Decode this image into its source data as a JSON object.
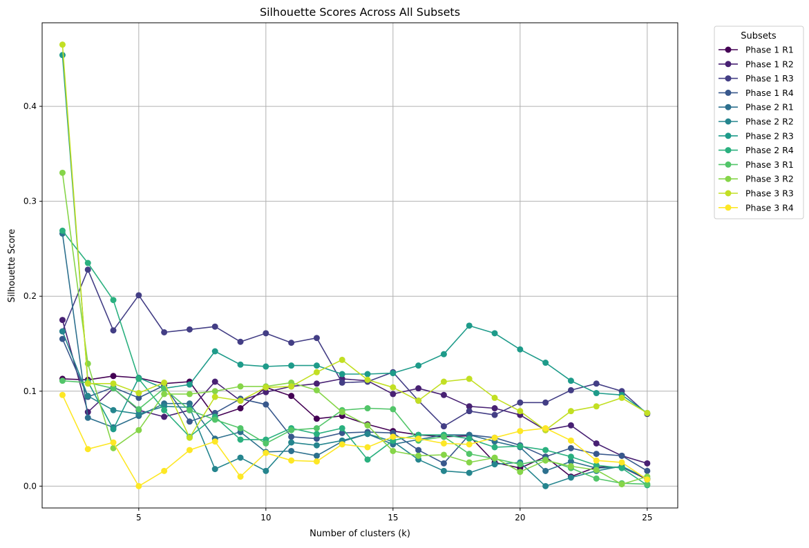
{
  "chart_data": {
    "type": "line",
    "title": "Silhouette Scores Across All Subsets",
    "xlabel": "Number of clusters (k)",
    "ylabel": "Silhouette Score",
    "xlim": [
      1.2,
      26.2
    ],
    "ylim": [
      -0.023,
      0.488
    ],
    "xticks": [
      5,
      10,
      15,
      20,
      25
    ],
    "yticks": [
      0.0,
      0.1,
      0.2,
      0.3,
      0.4
    ],
    "xtick_labels": [
      "5",
      "10",
      "15",
      "20",
      "25"
    ],
    "ytick_labels": [
      "0.0",
      "0.1",
      "0.2",
      "0.3",
      "0.4"
    ],
    "grid": true,
    "legend": {
      "title": "Subsets",
      "placement": "outside-right-top"
    },
    "x": [
      2,
      3,
      4,
      5,
      6,
      7,
      8,
      9,
      10,
      11,
      12,
      13,
      14,
      15,
      16,
      17,
      18,
      19,
      20,
      21,
      22,
      23,
      24,
      25
    ],
    "series": [
      {
        "name": "Phase 1 R1",
        "color": "#440154",
        "values": [
          0.113,
          0.112,
          0.116,
          0.114,
          0.108,
          0.11,
          0.073,
          0.082,
          0.104,
          0.095,
          0.071,
          0.074,
          0.065,
          0.058,
          0.054,
          0.052,
          0.053,
          0.025,
          0.019,
          0.031,
          0.01,
          0.02,
          0.02,
          0.007
        ]
      },
      {
        "name": "Phase 1 R2",
        "color": "#482173",
        "values": [
          0.175,
          0.078,
          0.103,
          0.08,
          0.073,
          0.08,
          0.11,
          0.09,
          0.099,
          0.105,
          0.108,
          0.113,
          0.111,
          0.097,
          0.103,
          0.096,
          0.084,
          0.082,
          0.075,
          0.059,
          0.064,
          0.045,
          0.032,
          0.024
        ]
      },
      {
        "name": "Phase 1 R3",
        "color": "#433e85",
        "values": [
          0.163,
          0.228,
          0.164,
          0.201,
          0.162,
          0.165,
          0.168,
          0.152,
          0.161,
          0.151,
          0.156,
          0.109,
          0.11,
          0.12,
          0.09,
          0.063,
          0.079,
          0.075,
          0.088,
          0.088,
          0.101,
          0.108,
          0.1,
          0.076
        ]
      },
      {
        "name": "Phase 1 R4",
        "color": "#38588c",
        "values": [
          0.155,
          0.094,
          0.104,
          0.093,
          0.106,
          0.068,
          0.077,
          0.092,
          0.086,
          0.052,
          0.05,
          0.056,
          0.057,
          0.056,
          0.038,
          0.024,
          0.054,
          0.051,
          0.043,
          0.031,
          0.04,
          0.034,
          0.032,
          0.016
        ]
      },
      {
        "name": "Phase 2 R1",
        "color": "#2d708e",
        "values": [
          0.266,
          0.072,
          0.062,
          0.074,
          0.087,
          0.087,
          0.05,
          0.057,
          0.036,
          0.037,
          0.032,
          0.047,
          0.055,
          0.044,
          0.049,
          0.054,
          0.054,
          0.047,
          0.041,
          0.016,
          0.026,
          0.019,
          0.02,
          0.008
        ]
      },
      {
        "name": "Phase 2 R2",
        "color": "#25858e",
        "values": [
          0.163,
          0.095,
          0.08,
          0.076,
          0.084,
          0.083,
          0.018,
          0.03,
          0.016,
          0.046,
          0.043,
          0.048,
          0.055,
          0.047,
          0.028,
          0.016,
          0.014,
          0.023,
          0.025,
          0.0,
          0.009,
          0.016,
          0.021,
          0.008
        ]
      },
      {
        "name": "Phase 2 R3",
        "color": "#1e9b8a",
        "values": [
          0.454,
          0.11,
          0.06,
          0.114,
          0.103,
          0.107,
          0.142,
          0.128,
          0.126,
          0.127,
          0.127,
          0.118,
          0.118,
          0.119,
          0.127,
          0.139,
          0.169,
          0.161,
          0.144,
          0.13,
          0.111,
          0.098,
          0.096,
          0.077
        ]
      },
      {
        "name": "Phase 2 R4",
        "color": "#2ab07f",
        "values": [
          0.269,
          0.235,
          0.196,
          0.113,
          0.08,
          0.052,
          0.073,
          0.049,
          0.049,
          0.061,
          0.055,
          0.061,
          0.028,
          0.048,
          0.054,
          0.054,
          0.05,
          0.041,
          0.042,
          0.038,
          0.031,
          0.022,
          0.019,
          0.001
        ]
      },
      {
        "name": "Phase 3 R1",
        "color": "#52c569",
        "values": [
          0.111,
          0.109,
          0.103,
          0.081,
          0.103,
          0.08,
          0.07,
          0.061,
          0.045,
          0.059,
          0.061,
          0.08,
          0.082,
          0.081,
          0.048,
          0.052,
          0.034,
          0.029,
          0.023,
          0.028,
          0.019,
          0.008,
          0.003,
          0.002
        ]
      },
      {
        "name": "Phase 3 R2",
        "color": "#86d549",
        "values": [
          0.33,
          0.129,
          0.04,
          0.059,
          0.097,
          0.097,
          0.1,
          0.105,
          0.105,
          0.109,
          0.101,
          0.078,
          0.064,
          0.037,
          0.032,
          0.033,
          0.025,
          0.03,
          0.015,
          0.027,
          0.021,
          0.017,
          0.002,
          0.01
        ]
      },
      {
        "name": "Phase 3 R3",
        "color": "#c2df23",
        "values": [
          0.465,
          0.108,
          0.108,
          0.098,
          0.109,
          0.051,
          0.094,
          0.09,
          0.104,
          0.105,
          0.12,
          0.133,
          0.112,
          0.104,
          0.09,
          0.11,
          0.113,
          0.093,
          0.079,
          0.059,
          0.079,
          0.084,
          0.093,
          0.077
        ]
      },
      {
        "name": "Phase 3 R4",
        "color": "#fde725",
        "values": [
          0.096,
          0.039,
          0.046,
          0.0,
          0.016,
          0.038,
          0.047,
          0.01,
          0.035,
          0.027,
          0.026,
          0.044,
          0.041,
          0.052,
          0.05,
          0.045,
          0.044,
          0.051,
          0.058,
          0.061,
          0.048,
          0.027,
          0.025,
          0.007
        ]
      }
    ]
  }
}
